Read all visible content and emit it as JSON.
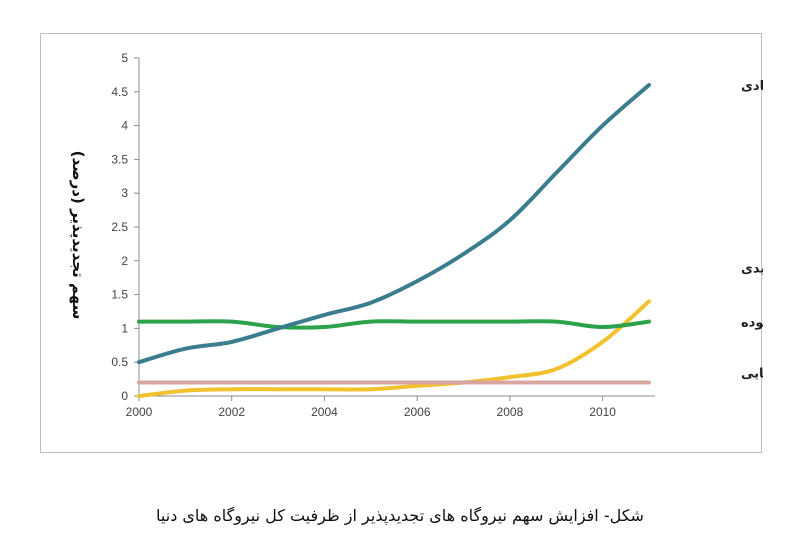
{
  "caption": "شکل- افزایش سهم نیروگاه های تجدیدپذیر از ظرفیت کل نیروگاه های دنیا",
  "chart_data": {
    "type": "line",
    "title": "",
    "xlabel": "",
    "ylabel": "سهم تجدیدپذیر (درصد)",
    "xlim": [
      2000,
      2011
    ],
    "ylim": [
      0,
      5
    ],
    "x_ticks": [
      2000,
      2002,
      2004,
      2006,
      2008,
      2010
    ],
    "y_ticks": [
      0,
      0.5,
      1,
      1.5,
      2,
      2.5,
      3,
      3.5,
      4,
      4.5,
      5
    ],
    "grid": false,
    "legend": "labels at line ends (right)",
    "x": [
      2000,
      2001,
      2002,
      2003,
      2004,
      2005,
      2006,
      2007,
      2008,
      2009,
      2010,
      2011
    ],
    "series": [
      {
        "name": "بادی",
        "color": "#3a7d8f",
        "values": [
          0.5,
          0.7,
          0.8,
          1.0,
          1.2,
          1.38,
          1.7,
          2.1,
          2.6,
          3.3,
          4.0,
          4.6
        ]
      },
      {
        "name": "زیست توده",
        "color": "#2ca24a",
        "values": [
          1.1,
          1.1,
          1.1,
          1.02,
          1.02,
          1.1,
          1.1,
          1.1,
          1.1,
          1.1,
          1.02,
          1.1
        ]
      },
      {
        "name": "خورشیدی",
        "color": "#f2c12e",
        "values": [
          0.0,
          0.08,
          0.1,
          0.1,
          0.1,
          0.1,
          0.15,
          0.2,
          0.28,
          0.4,
          0.8,
          1.4
        ]
      },
      {
        "name": "زمین گرمایی",
        "color": "#d9a5a0",
        "values": [
          0.2,
          0.2,
          0.2,
          0.2,
          0.2,
          0.2,
          0.2,
          0.2,
          0.2,
          0.2,
          0.2,
          0.2
        ]
      }
    ],
    "series_label_values": [
      {
        "series": "بادی",
        "label_y": 4.6
      },
      {
        "series": "خورشیدی",
        "label_y": 1.9
      },
      {
        "series": "زیست توده",
        "label_y": 1.1
      },
      {
        "series": "زمین گرمایی",
        "label_y": 0.35
      }
    ]
  }
}
